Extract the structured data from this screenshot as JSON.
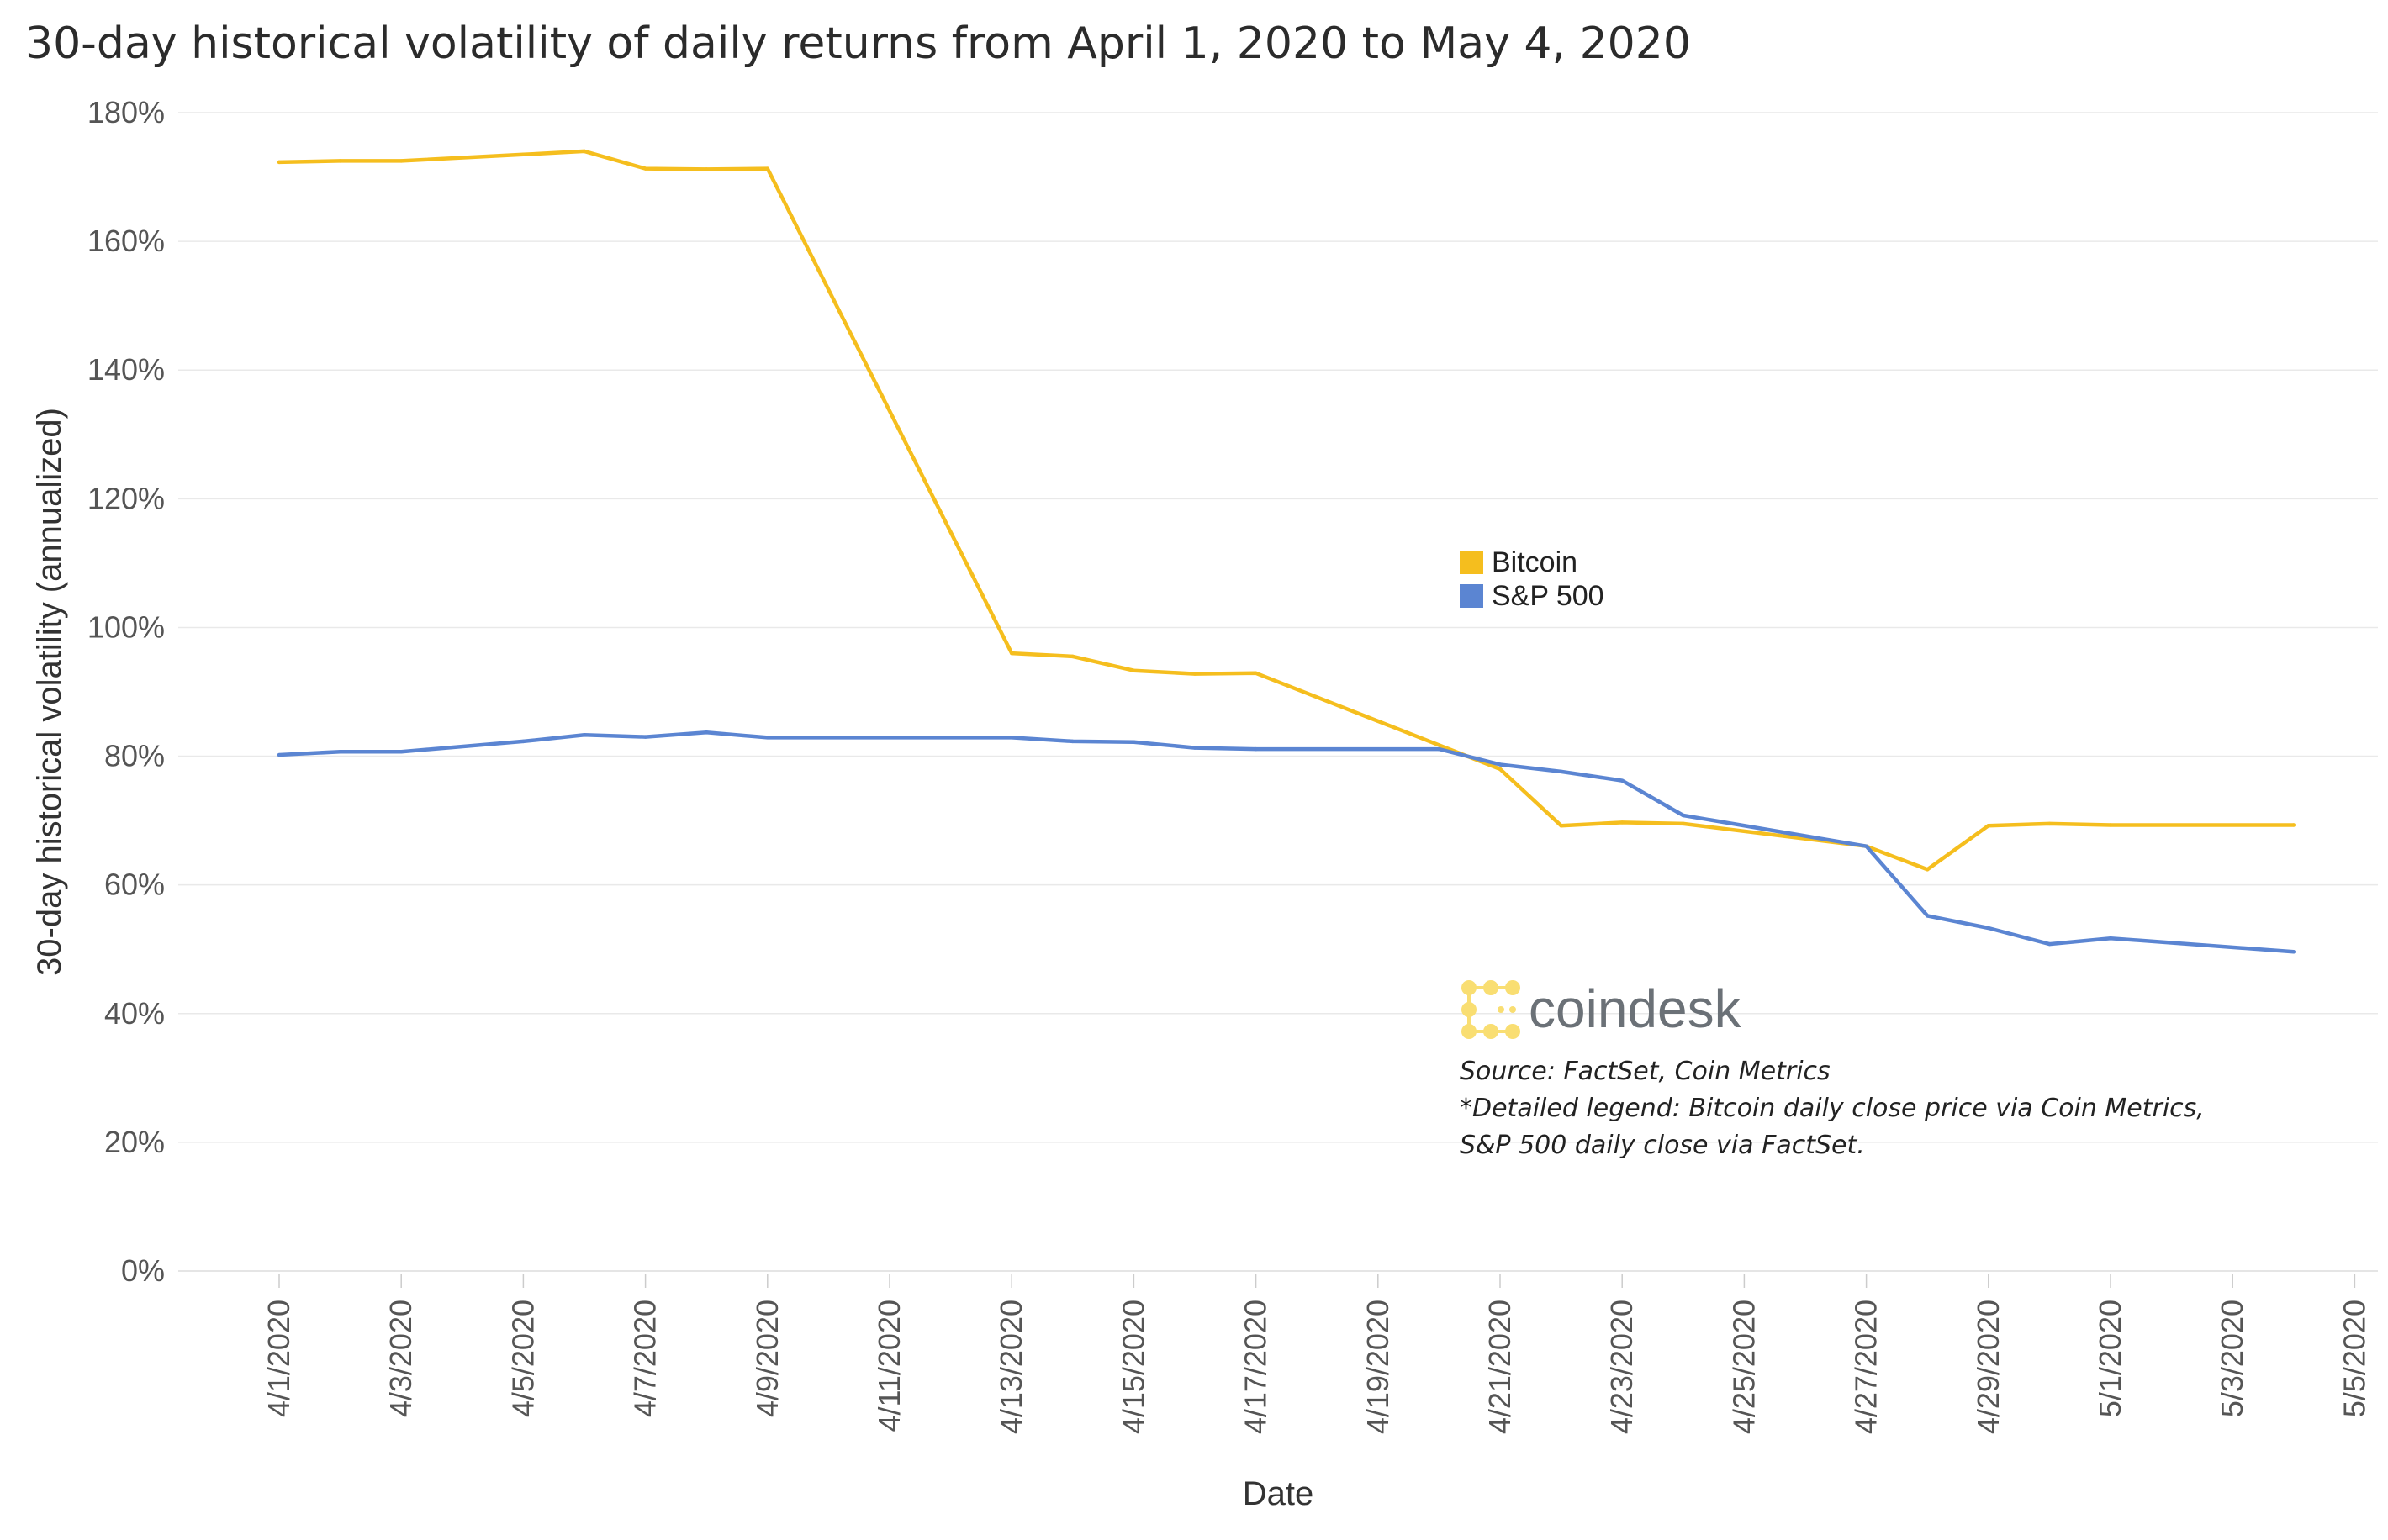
{
  "chart_data": {
    "type": "line",
    "title": "30-day historical volatility of daily returns from April 1, 2020 to May 4, 2020",
    "xlabel": "Date",
    "ylabel": "30-day historical volatility (annualized)",
    "ylim": [
      0,
      180
    ],
    "y_ticks": [
      "0%",
      "20%",
      "40%",
      "60%",
      "80%",
      "100%",
      "120%",
      "140%",
      "160%",
      "180%"
    ],
    "x_tick_labels": [
      "4/1/2020",
      "4/3/2020",
      "4/5/2020",
      "4/7/2020",
      "4/9/2020",
      "4/11/2020",
      "4/13/2020",
      "4/15/2020",
      "4/17/2020",
      "4/19/2020",
      "4/21/2020",
      "4/23/2020",
      "4/25/2020",
      "4/27/2020",
      "4/29/2020",
      "5/1/2020",
      "5/3/2020",
      "5/5/2020"
    ],
    "grid": true,
    "legend": "center-right",
    "series": [
      {
        "name": "Bitcoin",
        "color": "#F5BE1E",
        "x": [
          1,
          2,
          3,
          5,
          6,
          7,
          8,
          9,
          13,
          14,
          15,
          16,
          17,
          21,
          22,
          23,
          24,
          27,
          28,
          29,
          30,
          31,
          34
        ],
        "values": [
          172.3,
          172.5,
          172.5,
          173.5,
          174.0,
          171.3,
          171.2,
          171.3,
          96.0,
          95.5,
          93.3,
          92.8,
          92.9,
          78.0,
          69.2,
          69.7,
          69.5,
          66.0,
          62.4,
          69.2,
          69.5,
          69.3,
          69.3
        ]
      },
      {
        "name": "S&P 500",
        "color": "#5B85D2",
        "x": [
          1,
          2,
          3,
          5,
          6,
          7,
          8,
          9,
          13,
          14,
          15,
          16,
          17,
          20,
          21,
          22,
          23,
          24,
          27,
          28,
          29,
          30,
          31,
          34
        ],
        "values": [
          80.2,
          80.7,
          80.7,
          82.3,
          83.3,
          83.0,
          83.7,
          82.9,
          82.9,
          82.3,
          82.2,
          81.3,
          81.1,
          81.1,
          78.7,
          77.6,
          76.2,
          70.8,
          66.0,
          55.2,
          53.3,
          50.8,
          51.7,
          49.6
        ]
      }
    ],
    "annotations": {
      "logo_text": "coindesk",
      "source": "Source: FactSet, Coin Metrics",
      "legend_note_1": "*Detailed legend: Bitcoin daily close price via Coin Metrics,",
      "legend_note_2": "S&P 500 daily close via FactSet."
    }
  }
}
